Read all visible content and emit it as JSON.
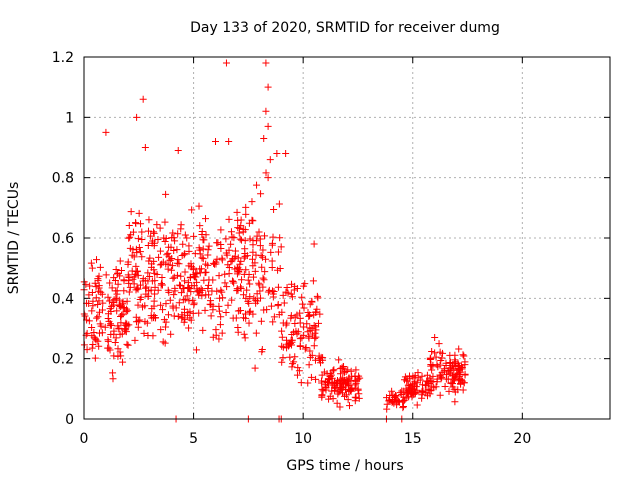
{
  "chart_data": {
    "type": "scatter",
    "title": "Day 133 of 2020, SRMTID for receiver dumg",
    "xlabel": "GPS time / hours",
    "ylabel": "SRMTID / TECUs",
    "xlim": [
      0,
      24
    ],
    "ylim": [
      0,
      1.2
    ],
    "xticks": [
      "0",
      "5",
      "10",
      "15",
      "20"
    ],
    "yticks": [
      "0",
      "0.2",
      "0.4",
      "0.6",
      "0.8",
      "1",
      "1.2"
    ],
    "grid": true,
    "marker": "+",
    "color": "#ff0000",
    "segments": [
      {
        "x0": 0.0,
        "x1": 2.0,
        "lo": 0.12,
        "hi": 0.55,
        "n": 140
      },
      {
        "x0": 2.0,
        "x1": 4.0,
        "lo": 0.15,
        "hi": 0.75,
        "n": 150
      },
      {
        "x0": 4.0,
        "x1": 6.5,
        "lo": 0.2,
        "hi": 0.7,
        "n": 170
      },
      {
        "x0": 6.5,
        "x1": 9.0,
        "lo": 0.15,
        "hi": 0.8,
        "n": 160
      },
      {
        "x0": 9.0,
        "x1": 10.8,
        "lo": 0.08,
        "hi": 0.5,
        "n": 110
      },
      {
        "x0": 10.8,
        "x1": 12.6,
        "lo": 0.03,
        "hi": 0.2,
        "n": 120
      },
      {
        "x0": 13.8,
        "x1": 14.6,
        "lo": 0.03,
        "hi": 0.1,
        "n": 30
      },
      {
        "x0": 14.6,
        "x1": 15.8,
        "lo": 0.04,
        "hi": 0.16,
        "n": 70
      },
      {
        "x0": 15.8,
        "x1": 17.4,
        "lo": 0.06,
        "hi": 0.24,
        "n": 110
      }
    ],
    "outliers": [
      {
        "x": 1.0,
        "y": 0.95
      },
      {
        "x": 2.4,
        "y": 1.0
      },
      {
        "x": 2.7,
        "y": 1.06
      },
      {
        "x": 6.5,
        "y": 1.18
      },
      {
        "x": 8.3,
        "y": 1.18
      },
      {
        "x": 8.4,
        "y": 1.1
      },
      {
        "x": 8.3,
        "y": 1.02
      },
      {
        "x": 8.4,
        "y": 0.97
      },
      {
        "x": 8.2,
        "y": 0.93
      },
      {
        "x": 4.3,
        "y": 0.89
      },
      {
        "x": 8.8,
        "y": 0.88
      },
      {
        "x": 9.2,
        "y": 0.88
      },
      {
        "x": 6.0,
        "y": 0.92
      },
      {
        "x": 6.6,
        "y": 0.92
      },
      {
        "x": 8.5,
        "y": 0.86
      },
      {
        "x": 2.8,
        "y": 0.9
      },
      {
        "x": 8.4,
        "y": 0.8
      },
      {
        "x": 10.5,
        "y": 0.58
      },
      {
        "x": 16.0,
        "y": 0.27
      },
      {
        "x": 16.2,
        "y": 0.25
      }
    ],
    "baseline_points": [
      {
        "x": 4.2,
        "y": 0
      },
      {
        "x": 7.5,
        "y": 0
      },
      {
        "x": 8.9,
        "y": 0
      },
      {
        "x": 9.0,
        "y": 0
      },
      {
        "x": 13.8,
        "y": 0
      },
      {
        "x": 14.5,
        "y": 0
      }
    ]
  }
}
